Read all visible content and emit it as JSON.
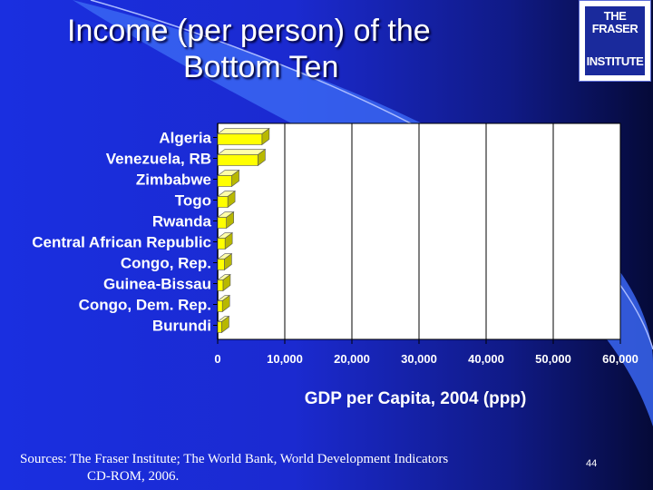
{
  "slide": {
    "title_line1": "Income (per person) of the",
    "title_line2": "Bottom Ten",
    "logo_line1": "THE FRASER",
    "logo_line2": "INSTITUTE",
    "source_line1": "Sources: The Fraser Institute; The World Bank, World Development  Indicators",
    "source_line2": "CD-ROM, 2006.",
    "page_number": "44"
  },
  "colors": {
    "bar_front": "#ffff00",
    "bar_top": "#ffffa8",
    "bar_side": "#b8b800",
    "plot_bg": "#ffffff",
    "gridline": "#000000"
  },
  "chart_data": {
    "type": "bar",
    "orientation": "horizontal",
    "categories": [
      "Algeria",
      "Venezuela, RB",
      "Zimbabwe",
      "Togo",
      "Rwanda",
      "Central African Republic",
      "Congo, Rep.",
      "Guinea-Bissau",
      "Congo, Dem. Rep.",
      "Burundi"
    ],
    "values": [
      6600,
      6000,
      2100,
      1500,
      1300,
      1100,
      1000,
      800,
      700,
      600
    ],
    "xlabel": "GDP per Capita, 2004 (ppp)",
    "ylabel": "",
    "xlim": [
      0,
      60000
    ],
    "xticks": [
      0,
      10000,
      20000,
      30000,
      40000,
      50000,
      60000
    ],
    "xtick_labels": [
      "0",
      "10,000",
      "20,000",
      "30,000",
      "40,000",
      "50,000",
      "60,000"
    ],
    "grid": true,
    "style": "3d"
  }
}
